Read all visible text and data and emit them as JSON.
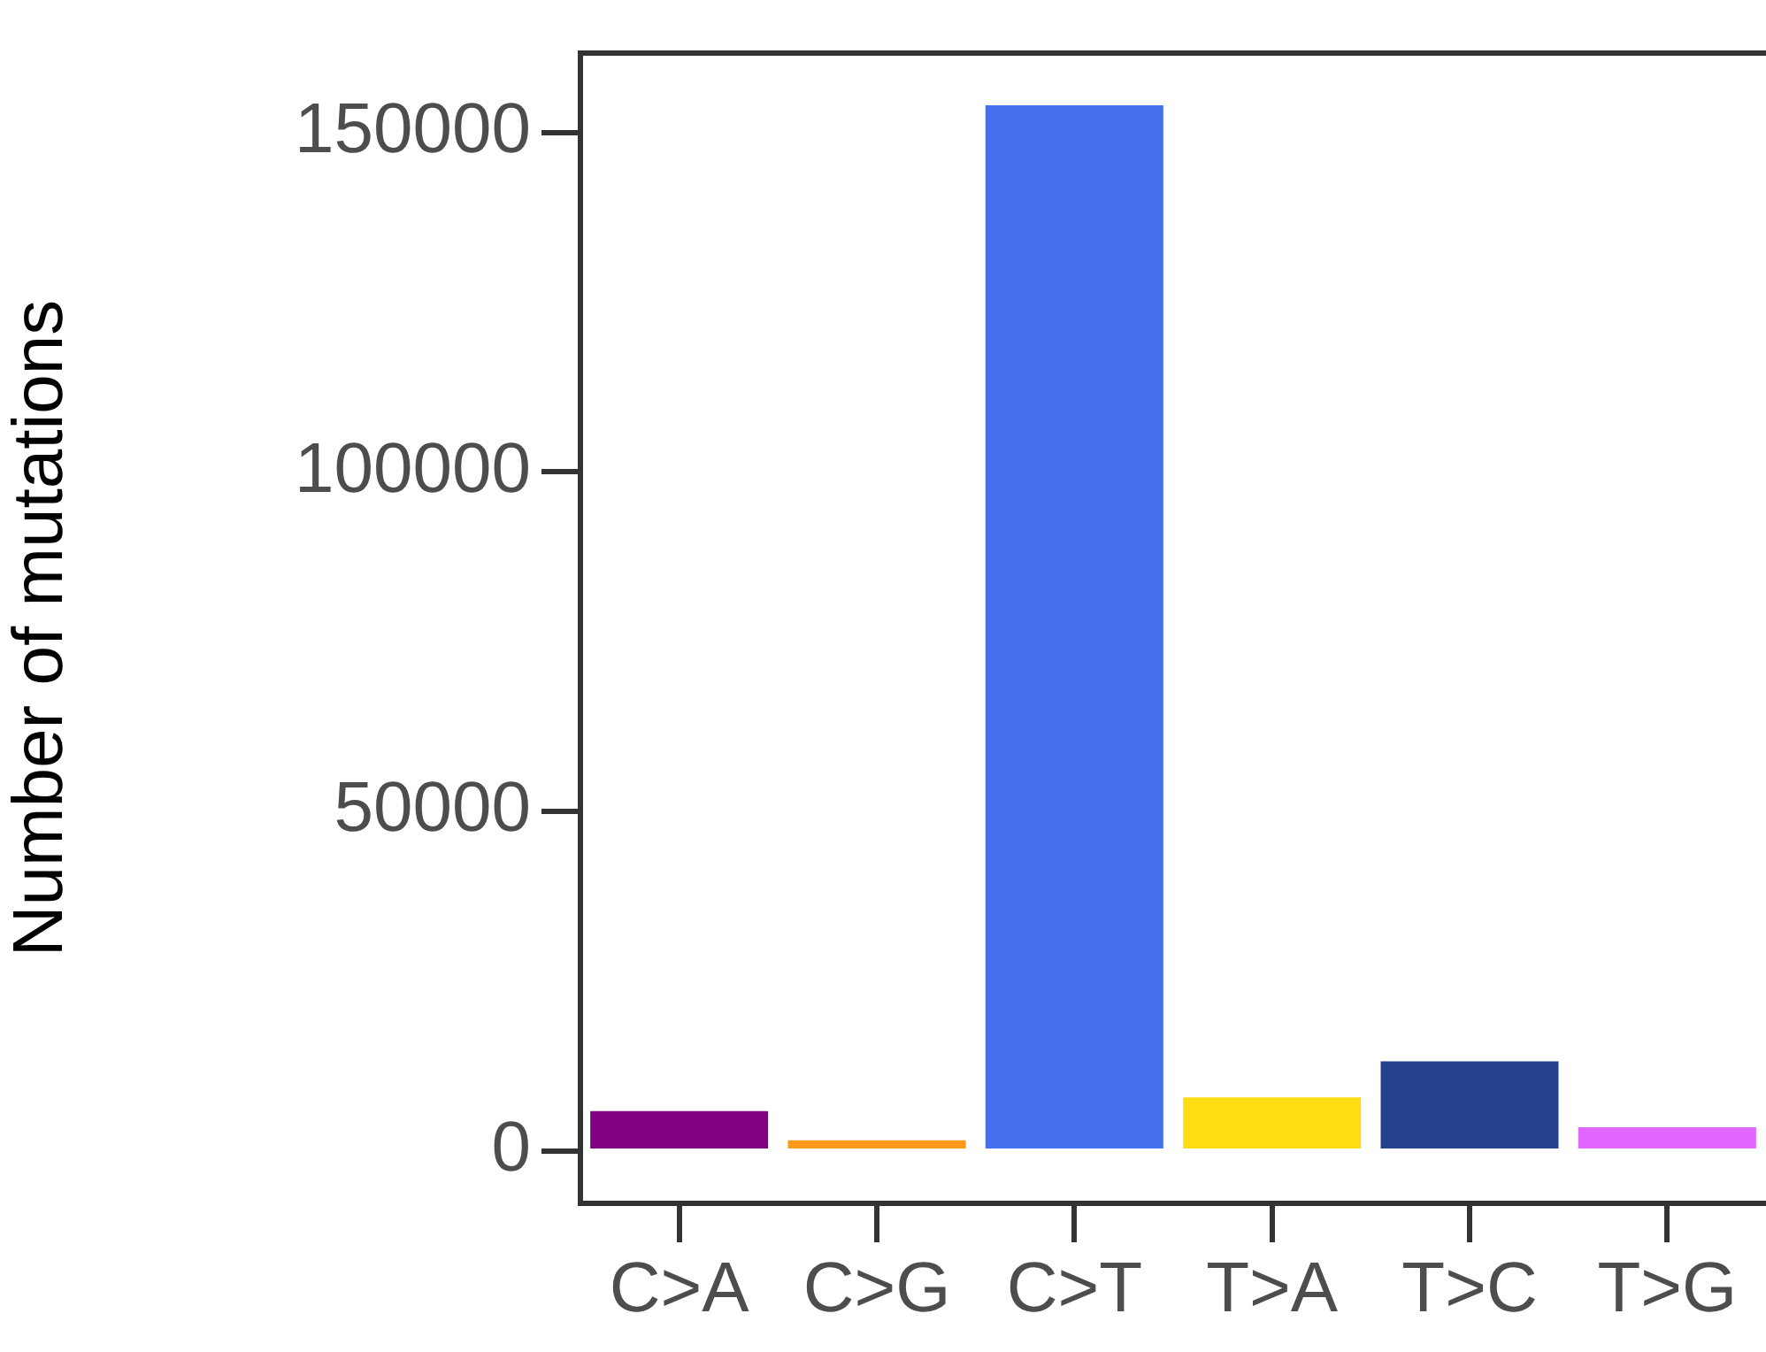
{
  "chart_data": {
    "type": "bar",
    "ylabel": "Number of mutations",
    "categories": [
      "C>A",
      "C>G",
      "C>T",
      "T>A",
      "T>C",
      "T>G"
    ],
    "values": [
      5900,
      1600,
      154000,
      7900,
      13200,
      3500
    ],
    "colors": [
      "#800080",
      "#ff9915",
      "#4570ee",
      "#ffdd12",
      "#26418d",
      "#e066ff"
    ],
    "ylim": [
      -7700,
      161700
    ],
    "yticks": [
      0,
      50000,
      100000,
      150000
    ],
    "grid": false,
    "legend": false
  }
}
